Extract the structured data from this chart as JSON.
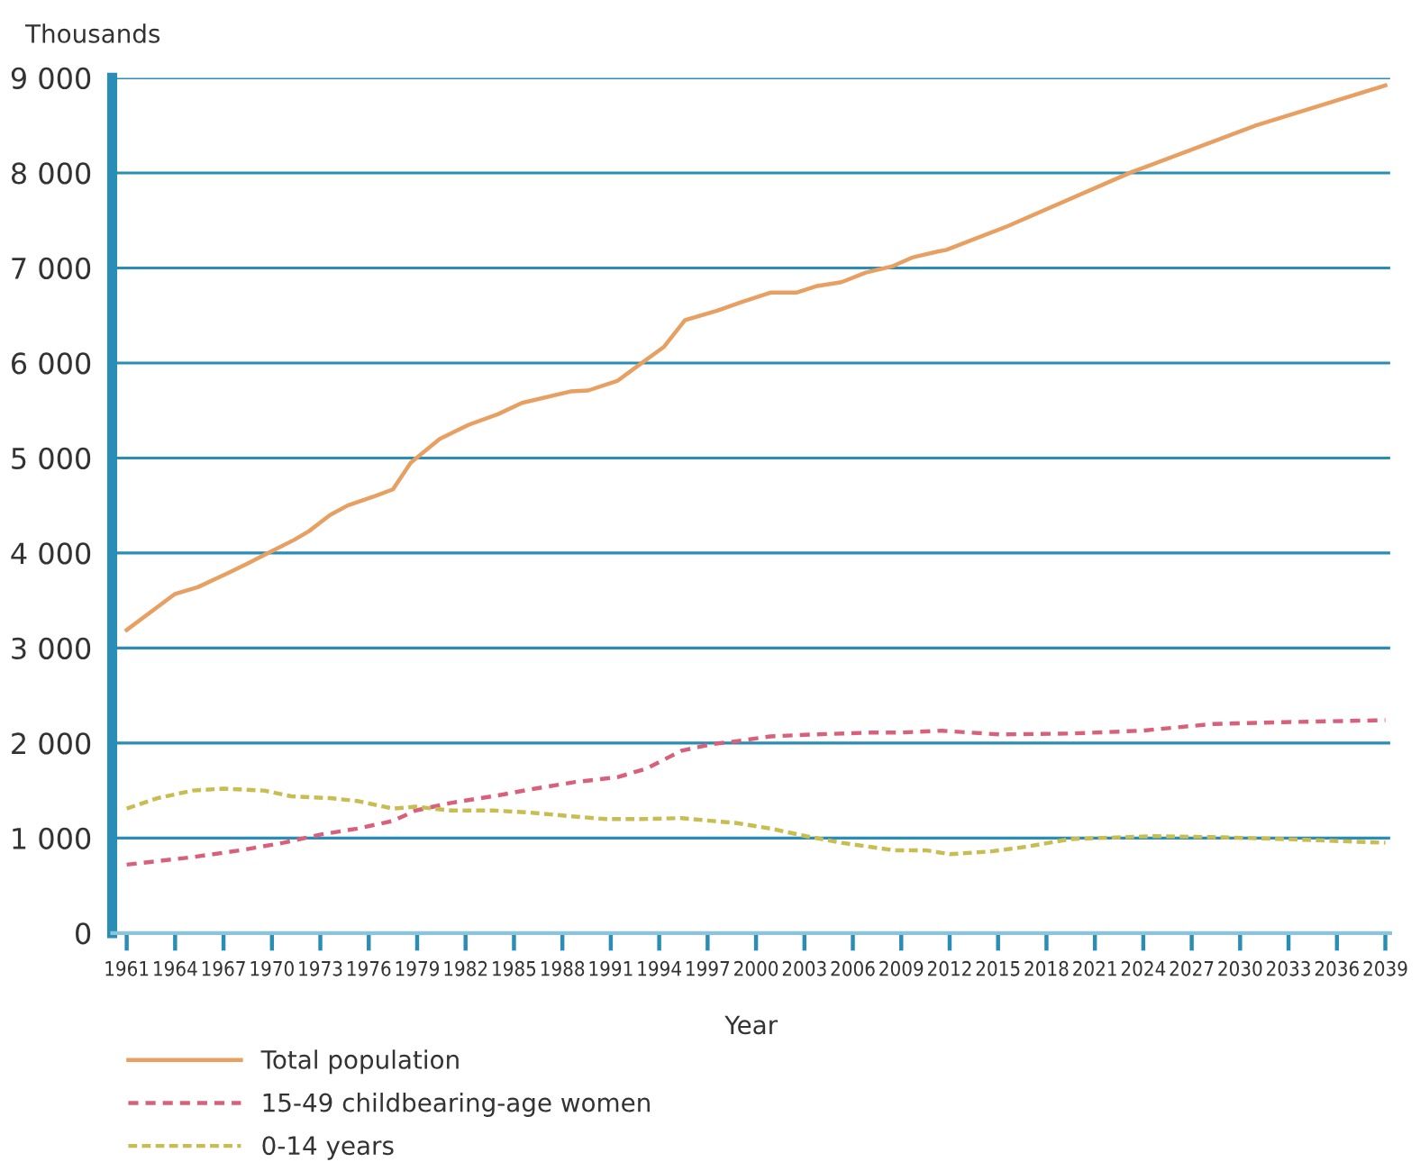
{
  "chart_data": {
    "type": "line",
    "ylabel": "Thousands",
    "xlabel": "Year",
    "xlim": [
      1960.1,
      2039.3
    ],
    "ylim": [
      0,
      9000
    ],
    "yticks": [
      0,
      {
        "value": 1000,
        "label": "1 000"
      },
      {
        "value": 2000,
        "label": "2 000"
      },
      {
        "value": 3000,
        "label": "3 000"
      },
      {
        "value": 4000,
        "label": "4 000"
      },
      {
        "value": 5000,
        "label": "5 000"
      },
      {
        "value": 6000,
        "label": "6 000"
      },
      {
        "value": 7000,
        "label": "7 000"
      },
      {
        "value": 8000,
        "label": "8 000"
      },
      {
        "value": 9000,
        "label": "9 000"
      }
    ],
    "xticks": [
      1961,
      1964,
      1967,
      1970,
      1973,
      1976,
      1979,
      1982,
      1985,
      1988,
      1991,
      1994,
      1997,
      2000,
      2003,
      2006,
      2009,
      2012,
      2015,
      2018,
      2021,
      2024,
      2027,
      2030,
      2033,
      2036,
      2039
    ],
    "grid": "y",
    "legend": "bottom",
    "marker": "none",
    "series": [
      {
        "name": "Total population",
        "color": "#e8a062",
        "line_style": "solid",
        "x": [
          1961,
          1964,
          1965.4,
          1967.3,
          1968.5,
          1970,
          1971.4,
          1972.3,
          1973.6,
          1974.7,
          1976.4,
          1977.5,
          1978.6,
          1980.4,
          1982.2,
          1984,
          1985.5,
          1988.5,
          1989.6,
          1991.4,
          1992.6,
          1994.3,
          1995.6,
          1997.6,
          1999.1,
          2000.9,
          2002.5,
          2003.8,
          2005.3,
          2006.8,
          2008.5,
          2009.7,
          2011.2,
          2011.8,
          2015.6,
          2023.3,
          2031,
          2039
        ],
        "values": [
          3190,
          3570,
          3640,
          3790,
          3890,
          4020,
          4140,
          4230,
          4400,
          4500,
          4600,
          4670,
          4950,
          5200,
          5350,
          5460,
          5580,
          5700,
          5710,
          5810,
          5960,
          6170,
          6450,
          6550,
          6640,
          6740,
          6740,
          6810,
          6850,
          6950,
          7020,
          7110,
          7170,
          7190,
          7440,
          8010,
          8500,
          8920
        ]
      },
      {
        "name": "15-49 childbearing-age women",
        "color": "#d9607a",
        "line_style": "dashed",
        "x": [
          1961,
          1965.1,
          1968,
          1970.7,
          1973.1,
          1975.3,
          1977.5,
          1978.9,
          1981.1,
          1983.7,
          1986.3,
          1988.8,
          1991.4,
          1993.2,
          1995.4,
          1997.3,
          1998.4,
          2000.9,
          2003.5,
          2007.1,
          2008.9,
          2011.5,
          2015.1,
          2019.5,
          2023.9,
          2028.3,
          2032.7,
          2039
        ],
        "values": [
          720,
          800,
          870,
          950,
          1040,
          1100,
          1180,
          1290,
          1370,
          1440,
          1520,
          1590,
          1640,
          1730,
          1920,
          1990,
          2010,
          2070,
          2090,
          2110,
          2110,
          2130,
          2090,
          2100,
          2130,
          2200,
          2220,
          2240
        ]
      },
      {
        "name": "0-14 years",
        "color": "#c8bd50",
        "line_style": "dotted",
        "x": [
          1961,
          1962.9,
          1965.1,
          1967,
          1969.5,
          1971.2,
          1973.6,
          1975.3,
          1977.5,
          1978.9,
          1981.1,
          1983.7,
          1985.9,
          1988.5,
          1990.7,
          1992.9,
          1995.4,
          1997.3,
          1998.7,
          2000.9,
          2003.1,
          2005.3,
          2008.6,
          2010.6,
          2012,
          2014.6,
          2016.8,
          2019.5,
          2024.7,
          2028.3,
          2032.7,
          2039
        ],
        "values": [
          1310,
          1420,
          1500,
          1520,
          1500,
          1440,
          1420,
          1390,
          1310,
          1330,
          1290,
          1290,
          1270,
          1230,
          1200,
          1200,
          1210,
          1180,
          1160,
          1100,
          1020,
          950,
          870,
          870,
          830,
          860,
          910,
          990,
          1020,
          1010,
          990,
          950
        ]
      }
    ]
  }
}
